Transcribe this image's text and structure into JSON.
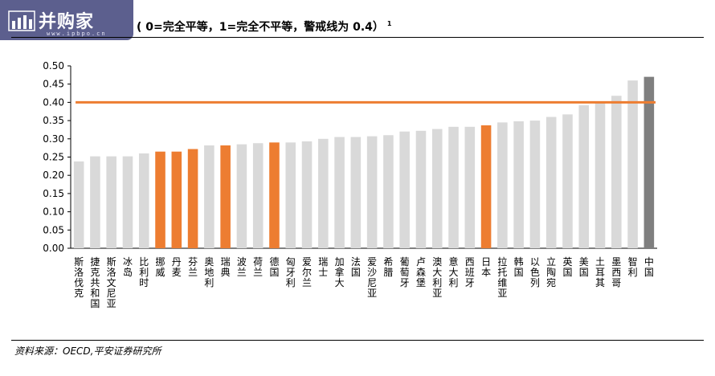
{
  "header": {
    "logo_text": "并购家",
    "logo_url": "www.ipbpo.cn",
    "title": "( 0=完全平等，1=完全不平等，警戒线为 0.4）",
    "title_superscript": "1"
  },
  "footer": {
    "source": "资料来源：OECD,平安证券研究所"
  },
  "colors": {
    "bar_default": "#d9d9d9",
    "bar_highlight": "#ed7d31",
    "bar_china": "#7f7f7f",
    "threshold_line": "#ed7d31",
    "logo_bg": "#5c5f8e"
  },
  "chart_data": {
    "type": "bar",
    "title": "( 0=完全平等，1=完全不平等，警戒线为 0.4）",
    "xlabel": "",
    "ylabel": "",
    "ylim": [
      0,
      0.5
    ],
    "yticks": [
      "0.00",
      "0.05",
      "0.10",
      "0.15",
      "0.20",
      "0.25",
      "0.30",
      "0.35",
      "0.40",
      "0.45",
      "0.50"
    ],
    "grid": false,
    "threshold": 0.4,
    "categories": [
      "斯洛伐克",
      "捷克共和国",
      "斯洛文尼亚",
      "冰岛",
      "比利时",
      "挪威",
      "丹麦",
      "芬兰",
      "奥地利",
      "瑞典",
      "波兰",
      "荷兰",
      "德国",
      "匈牙利",
      "爱尔兰",
      "瑞士",
      "加拿大",
      "法国",
      "爱沙尼亚",
      "希腊",
      "葡萄牙",
      "卢森堡",
      "澳大利亚",
      "意大利",
      "西班牙",
      "日本",
      "拉托维亚",
      "韩国",
      "以色列",
      "立陶宛",
      "英国",
      "美国",
      "土耳其",
      "墨西哥",
      "智利",
      "中国"
    ],
    "values": [
      0.238,
      0.252,
      0.252,
      0.252,
      0.26,
      0.265,
      0.265,
      0.272,
      0.282,
      0.282,
      0.285,
      0.288,
      0.29,
      0.29,
      0.293,
      0.3,
      0.305,
      0.305,
      0.307,
      0.31,
      0.32,
      0.322,
      0.327,
      0.333,
      0.333,
      0.337,
      0.345,
      0.348,
      0.35,
      0.36,
      0.367,
      0.392,
      0.398,
      0.418,
      0.46,
      0.47
    ],
    "highlight": [
      "default",
      "default",
      "default",
      "default",
      "default",
      "highlight",
      "highlight",
      "highlight",
      "default",
      "highlight",
      "default",
      "default",
      "highlight",
      "default",
      "default",
      "default",
      "default",
      "default",
      "default",
      "default",
      "default",
      "default",
      "default",
      "default",
      "default",
      "highlight",
      "default",
      "default",
      "default",
      "default",
      "default",
      "default",
      "default",
      "default",
      "default",
      "china"
    ]
  }
}
